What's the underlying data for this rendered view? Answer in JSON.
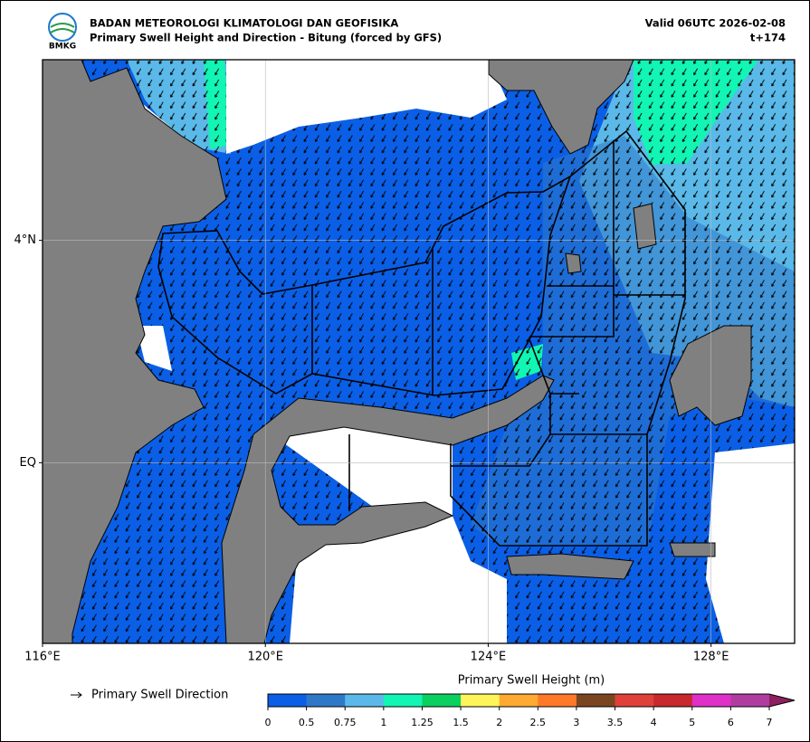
{
  "header": {
    "logo_text": "BMKG",
    "agency": "BADAN METEOROLOGI KLIMATOLOGI DAN GEOFISIKA",
    "title": "Primary Swell Height and Direction - Bitung (forced by GFS)",
    "valid": "Valid 06UTC 2026-02-08",
    "lead": "t+174"
  },
  "map": {
    "lonlim": [
      116,
      129.5
    ],
    "latlim": [
      -3.25,
      7.25
    ],
    "xticks": [
      {
        "value": 116,
        "label": "116°E"
      },
      {
        "value": 120,
        "label": "120°E"
      },
      {
        "value": 124,
        "label": "124°E"
      },
      {
        "value": 128,
        "label": "128°E"
      }
    ],
    "yticks": [
      {
        "value": 0,
        "label": "EQ"
      },
      {
        "value": 4,
        "label": "4°N"
      }
    ]
  },
  "legend": {
    "direction": "Primary Swell Direction"
  },
  "colorbar": {
    "label": "Primary Swell Height (m)",
    "ticks": [
      0,
      0.5,
      0.75,
      1,
      1.25,
      1.5,
      2,
      2.5,
      3,
      3.5,
      4,
      5,
      6,
      7
    ],
    "colors": [
      "#0a5fe6",
      "#2f78c8",
      "#5ab9e8",
      "#12f5b4",
      "#0ad060",
      "#fff55a",
      "#ffaa32",
      "#ff7a28",
      "#7a4620",
      "#e0403a",
      "#c8282e",
      "#e030c8",
      "#b03ca0"
    ],
    "extend_color": "#8c2060"
  }
}
